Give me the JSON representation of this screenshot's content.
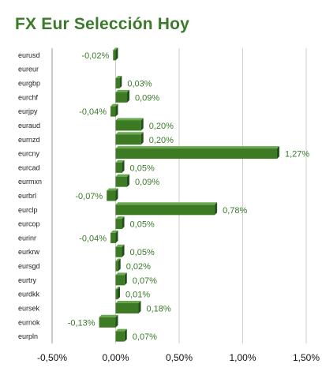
{
  "header": {
    "title": "FX Eur Selección Hoy"
  },
  "colors": {
    "bar": "#3c7a24",
    "bar_side": "#22501a",
    "bar_top": "#6aa84f",
    "title": "#3a7a2a",
    "grid": "#cccccc"
  },
  "chart_data": {
    "type": "bar",
    "orientation": "horizontal",
    "title": "FX Eur Selección Hoy",
    "xlabel": "",
    "ylabel": "",
    "xlim": [
      -0.5,
      1.5
    ],
    "x_ticks": [
      -0.5,
      0.0,
      0.5,
      1.0,
      1.5
    ],
    "x_tick_labels": [
      "-0,50%",
      "0,00%",
      "0,50%",
      "1,00%",
      "1,50%"
    ],
    "grid": true,
    "categories": [
      "eurusd",
      "eureur",
      "eurgbp",
      "eurchf",
      "eurjpy",
      "euraud",
      "eurnzd",
      "eurcny",
      "eurcad",
      "eurmxn",
      "eurbrl",
      "eurclp",
      "eurcop",
      "eurinr",
      "eurkrw",
      "eursgd",
      "eurtry",
      "eurdkk",
      "eursek",
      "eurnok",
      "eurpln"
    ],
    "values": [
      -0.02,
      null,
      0.03,
      0.09,
      -0.04,
      0.2,
      0.2,
      1.27,
      0.05,
      0.09,
      -0.07,
      0.78,
      0.05,
      -0.04,
      0.05,
      0.02,
      0.07,
      0.01,
      0.18,
      -0.13,
      0.07
    ],
    "value_labels": [
      "-0,02%",
      "",
      "0,03%",
      "0,09%",
      "-0,04%",
      "0,20%",
      "0,20%",
      "1,27%",
      "0,05%",
      "0,09%",
      "-0,07%",
      "0,78%",
      "0,05%",
      "-0,04%",
      "0,05%",
      "0,02%",
      "0,07%",
      "0,01%",
      "0,18%",
      "-0,13%",
      "0,07%"
    ]
  }
}
